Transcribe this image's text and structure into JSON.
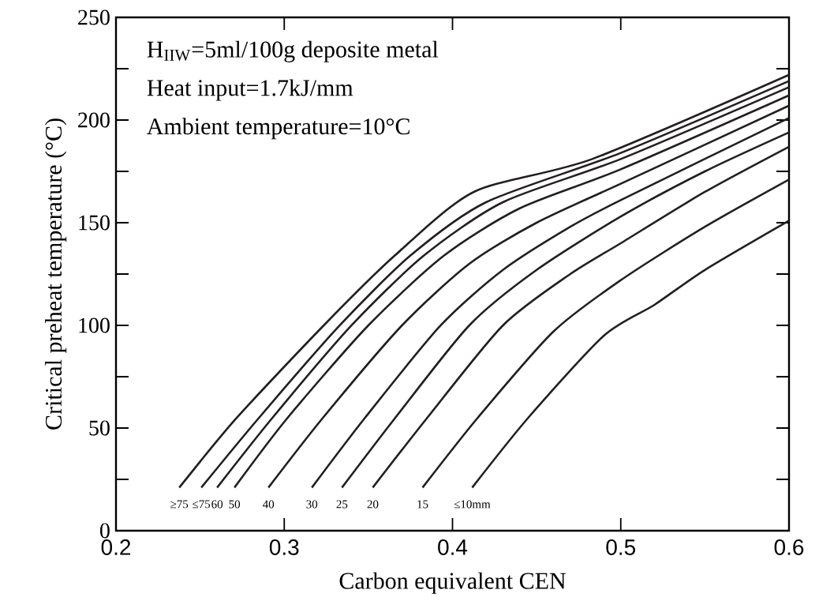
{
  "chart_data": {
    "type": "line",
    "xlabel": "Carbon equivalent  CEN",
    "ylabel": "Critical preheat temperature (°C)",
    "annotations": [
      "H$_{IIW}$=5ml/100g deposite metal",
      "Heat input=1.7kJ/mm",
      "Ambient temperature=10°C"
    ],
    "xlim": [
      0.2,
      0.6
    ],
    "ylim": [
      0,
      250
    ],
    "xticks": [
      0.2,
      0.3,
      0.4,
      0.5,
      0.6
    ],
    "yticks": [
      0,
      {
        "value": 25,
        "label": null
      },
      50,
      {
        "value": 75,
        "label": null
      },
      100,
      {
        "value": 125,
        "label": null
      },
      150,
      {
        "value": 175,
        "label": null
      },
      200,
      {
        "value": 225,
        "label": null
      },
      250
    ],
    "grid": false,
    "legend": false,
    "marker": "none",
    "line_style": "solid",
    "series": [
      {
        "name": "≥75",
        "color": "#231f20",
        "x": [
          0.2376,
          0.2718,
          0.3235,
          0.3657,
          0.4127,
          0.483,
          0.6
        ],
        "values": [
          21,
          55,
          100,
          134,
          165,
          181,
          222
        ]
      },
      {
        "name": "≤75",
        "color": "#231f20",
        "x": [
          0.2507,
          0.285,
          0.333,
          0.375,
          0.42,
          0.5,
          0.6
        ],
        "values": [
          21,
          55,
          100,
          134,
          160,
          184,
          219
        ]
      },
      {
        "name": "60",
        "color": "#231f20",
        "x": [
          0.2601,
          0.293,
          0.34,
          0.383,
          0.43,
          0.5,
          0.6
        ],
        "values": [
          21,
          55,
          100,
          134,
          160,
          181,
          216
        ]
      },
      {
        "name": "50",
        "color": "#231f20",
        "x": [
          0.2704,
          0.302,
          0.35,
          0.395,
          0.44,
          0.5,
          0.6
        ],
        "values": [
          21,
          55,
          100,
          134,
          157,
          176,
          212
        ]
      },
      {
        "name": "40",
        "color": "#231f20",
        "x": [
          0.2906,
          0.323,
          0.37,
          0.41,
          0.45,
          0.5,
          0.6
        ],
        "values": [
          21,
          55,
          100,
          130,
          150,
          169,
          207
        ]
      },
      {
        "name": "30",
        "color": "#231f20",
        "x": [
          0.3164,
          0.348,
          0.393,
          0.43,
          0.47,
          0.5,
          0.6
        ],
        "values": [
          21,
          55,
          100,
          127,
          148,
          161,
          201
        ]
      },
      {
        "name": "25",
        "color": "#231f20",
        "x": [
          0.3343,
          0.366,
          0.41,
          0.45,
          0.5,
          0.55,
          0.6
        ],
        "values": [
          21,
          55,
          100,
          127,
          153,
          175,
          194
        ]
      },
      {
        "name": "20",
        "color": "#231f20",
        "x": [
          0.3526,
          0.385,
          0.43,
          0.47,
          0.5,
          0.55,
          0.6
        ],
        "values": [
          21,
          55,
          100,
          125,
          140,
          165,
          187
        ]
      },
      {
        "name": "15",
        "color": "#231f20",
        "x": [
          0.3822,
          0.415,
          0.46,
          0.5,
          0.55,
          0.6
        ],
        "values": [
          21,
          55,
          97,
          122,
          148,
          171
        ]
      },
      {
        "name": "≤10mm",
        "color": "#231f20",
        "x": [
          0.4117,
          0.445,
          0.49,
          0.52,
          0.55,
          0.6
        ],
        "values": [
          21,
          55,
          95,
          110,
          127,
          151
        ]
      }
    ]
  }
}
